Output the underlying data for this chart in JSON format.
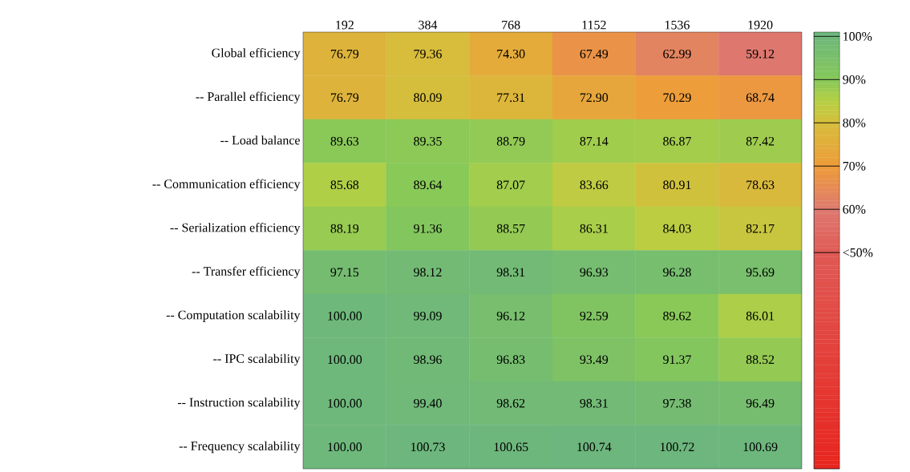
{
  "chart_data": {
    "type": "heatmap",
    "categories": [
      "192",
      "384",
      "768",
      "1152",
      "1536",
      "1920"
    ],
    "y_categories": [
      "Global efficiency",
      "-- Parallel efficiency",
      "-- Load balance",
      "-- Communication efficiency",
      "-- Serialization efficiency",
      "-- Transfer efficiency",
      "-- Computation scalability",
      "-- IPC scalability",
      "-- Instruction scalability",
      "-- Frequency scalability"
    ],
    "cells": [
      [
        76.79,
        79.36,
        74.3,
        67.49,
        62.99,
        59.12
      ],
      [
        76.79,
        80.09,
        77.31,
        72.9,
        70.29,
        68.74
      ],
      [
        89.63,
        89.35,
        88.79,
        87.14,
        86.87,
        87.42
      ],
      [
        85.68,
        89.64,
        87.07,
        83.66,
        80.91,
        78.63
      ],
      [
        88.19,
        91.36,
        88.57,
        86.31,
        84.03,
        82.17
      ],
      [
        97.15,
        98.12,
        98.31,
        96.93,
        96.28,
        95.69
      ],
      [
        100.0,
        99.09,
        96.12,
        92.59,
        89.62,
        86.01
      ],
      [
        100.0,
        98.96,
        96.83,
        93.49,
        91.37,
        88.52
      ],
      [
        100.0,
        99.4,
        98.62,
        98.31,
        97.38,
        96.49
      ],
      [
        100.0,
        100.73,
        100.65,
        100.74,
        100.72,
        100.69
      ]
    ],
    "cell_labels": [
      [
        "76.79",
        "79.36",
        "74.30",
        "67.49",
        "62.99",
        "59.12"
      ],
      [
        "76.79",
        "80.09",
        "77.31",
        "72.90",
        "70.29",
        "68.74"
      ],
      [
        "89.63",
        "89.35",
        "88.79",
        "87.14",
        "86.87",
        "87.42"
      ],
      [
        "85.68",
        "89.64",
        "87.07",
        "83.66",
        "80.91",
        "78.63"
      ],
      [
        "88.19",
        "91.36",
        "88.57",
        "86.31",
        "84.03",
        "82.17"
      ],
      [
        "97.15",
        "98.12",
        "98.31",
        "96.93",
        "96.28",
        "95.69"
      ],
      [
        "100.00",
        "99.09",
        "96.12",
        "92.59",
        "89.62",
        "86.01"
      ],
      [
        "100.00",
        "98.96",
        "96.83",
        "93.49",
        "91.37",
        "88.52"
      ],
      [
        "100.00",
        "99.40",
        "98.62",
        "98.31",
        "97.38",
        "96.49"
      ],
      [
        "100.00",
        "100.73",
        "100.65",
        "100.74",
        "100.72",
        "100.69"
      ]
    ],
    "clim": [
      0,
      101
    ],
    "cticks": [
      {
        "value": 100,
        "label": "100%"
      },
      {
        "value": 90,
        "label": "90%"
      },
      {
        "value": 80,
        "label": "80%"
      },
      {
        "value": 70,
        "label": "70%"
      },
      {
        "value": 60,
        "label": "60%"
      },
      {
        "value": 50,
        "label": "<50%"
      }
    ]
  }
}
